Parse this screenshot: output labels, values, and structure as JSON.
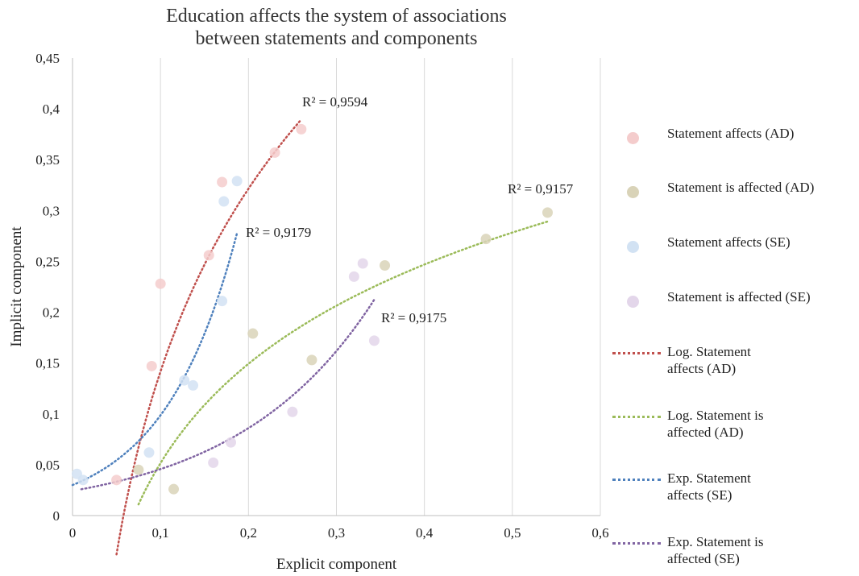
{
  "chart_data": {
    "type": "scatter",
    "title_lines": [
      "Education affects the system of associations",
      "between statements and components"
    ],
    "xlabel": "Explicit component",
    "ylabel": "Implicit component",
    "xlim": [
      0,
      0.6
    ],
    "ylim": [
      0,
      0.45
    ],
    "x_ticks": [
      "0",
      "0,1",
      "0,2",
      "0,3",
      "0,4",
      "0,5",
      "0,6"
    ],
    "y_ticks": [
      "0",
      "0,05",
      "0,1",
      "0,15",
      "0,2",
      "0,25",
      "0,3",
      "0,35",
      "0,4",
      "0,45"
    ],
    "grid": "vertical",
    "legend_position": "right",
    "series": [
      {
        "name": "Statement affects (AD)",
        "color": "#f4cccc",
        "points": [
          [
            0.05,
            0.035
          ],
          [
            0.09,
            0.147
          ],
          [
            0.1,
            0.228
          ],
          [
            0.155,
            0.256
          ],
          [
            0.17,
            0.328
          ],
          [
            0.23,
            0.357
          ],
          [
            0.26,
            0.38
          ]
        ]
      },
      {
        "name": "Statement is affected (AD)",
        "color": "#d9d3b8",
        "points": [
          [
            0.075,
            0.045
          ],
          [
            0.115,
            0.026
          ],
          [
            0.205,
            0.179
          ],
          [
            0.272,
            0.153
          ],
          [
            0.355,
            0.246
          ],
          [
            0.47,
            0.272
          ],
          [
            0.54,
            0.298
          ]
        ]
      },
      {
        "name": "Statement affects (SE)",
        "color": "#d2e2f3",
        "points": [
          [
            0.005,
            0.041
          ],
          [
            0.012,
            0.035
          ],
          [
            0.087,
            0.062
          ],
          [
            0.127,
            0.133
          ],
          [
            0.137,
            0.128
          ],
          [
            0.17,
            0.211
          ],
          [
            0.172,
            0.309
          ],
          [
            0.187,
            0.329
          ]
        ]
      },
      {
        "name": "Statement is affected (SE)",
        "color": "#e3d6ea",
        "points": [
          [
            0.16,
            0.052
          ],
          [
            0.18,
            0.072
          ],
          [
            0.25,
            0.102
          ],
          [
            0.32,
            0.235
          ],
          [
            0.33,
            0.248
          ],
          [
            0.343,
            0.172
          ]
        ]
      }
    ],
    "trendlines": [
      {
        "name": "Log. Statement affects (AD)",
        "type": "log",
        "color": "#c0504d",
        "x_range": [
          0.05,
          0.26
        ],
        "a": 0.2594,
        "b": 0.7389,
        "r2_label": "R² = 0,9594"
      },
      {
        "name": "Log. Statement is affected (AD)",
        "type": "log",
        "color": "#9bbb59",
        "x_range": [
          0.075,
          0.54
        ],
        "a": 0.1409,
        "b": 0.376,
        "r2_label": "R² = 0,9157"
      },
      {
        "name": "Exp. Statement affects (SE)",
        "type": "exp",
        "color": "#4f81bd",
        "x_range": [
          0.0,
          0.187
        ],
        "a": 0.03,
        "b": 11.9,
        "r2_label": "R² = 0,9179"
      },
      {
        "name": "Exp. Statement is affected (SE)",
        "type": "exp",
        "color": "#8064a2",
        "x_range": [
          0.01,
          0.343
        ],
        "a": 0.0243,
        "b": 6.32,
        "r2_label": "R² = 0,9175"
      }
    ]
  }
}
